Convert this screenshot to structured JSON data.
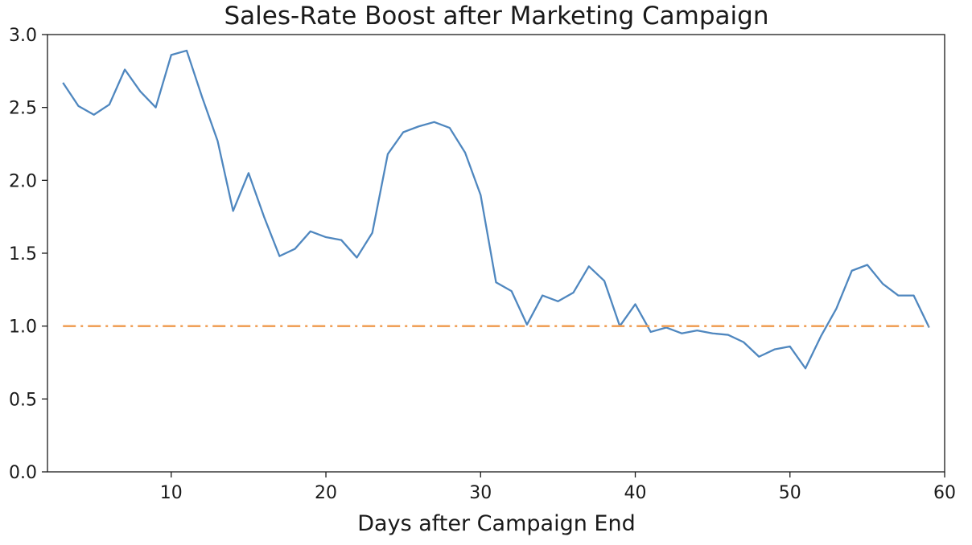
{
  "chart_data": {
    "type": "line",
    "title": "Sales-Rate Boost after Marketing Campaign",
    "xlabel": "Days after Campaign End",
    "ylabel": "",
    "xlim": [
      2,
      60
    ],
    "ylim": [
      0.0,
      3.0
    ],
    "xticks": [
      10,
      20,
      30,
      40,
      50,
      60
    ],
    "yticks": [
      0.0,
      0.5,
      1.0,
      1.5,
      2.0,
      2.5,
      3.0
    ],
    "xtick_labels": [
      "10",
      "20",
      "30",
      "40",
      "50",
      "60"
    ],
    "ytick_labels": [
      "0.0",
      "0.5",
      "1.0",
      "1.5",
      "2.0",
      "2.5",
      "3.0"
    ],
    "grid": false,
    "legend": false,
    "series": [
      {
        "style": "solid",
        "color": "#4f87bf",
        "x": [
          3,
          4,
          5,
          6,
          7,
          8,
          9,
          10,
          11,
          12,
          13,
          14,
          15,
          16,
          17,
          18,
          19,
          20,
          21,
          22,
          23,
          24,
          25,
          26,
          27,
          28,
          29,
          30,
          31,
          32,
          33,
          34,
          35,
          36,
          37,
          38,
          39,
          40,
          41,
          42,
          43,
          44,
          45,
          46,
          47,
          48,
          49,
          50,
          51,
          52,
          53,
          54,
          55,
          56,
          57,
          58,
          59
        ],
        "values": [
          2.67,
          2.51,
          2.45,
          2.52,
          2.76,
          2.61,
          2.5,
          2.86,
          2.89,
          2.57,
          2.27,
          1.79,
          2.05,
          1.75,
          1.48,
          1.53,
          1.65,
          1.61,
          1.59,
          1.47,
          1.64,
          2.18,
          2.33,
          2.37,
          2.4,
          2.36,
          2.19,
          1.9,
          1.3,
          1.24,
          1.01,
          1.21,
          1.17,
          1.23,
          1.41,
          1.31,
          1.0,
          1.15,
          0.96,
          0.99,
          0.95,
          0.97,
          0.95,
          0.94,
          0.89,
          0.79,
          0.84,
          0.86,
          0.71,
          0.93,
          1.12,
          1.38,
          1.42,
          1.29,
          1.21,
          1.21,
          0.99
        ]
      },
      {
        "style": "dashdot",
        "color": "#f0a15a",
        "x": [
          3,
          59
        ],
        "values": [
          1.0,
          1.0
        ]
      }
    ]
  }
}
